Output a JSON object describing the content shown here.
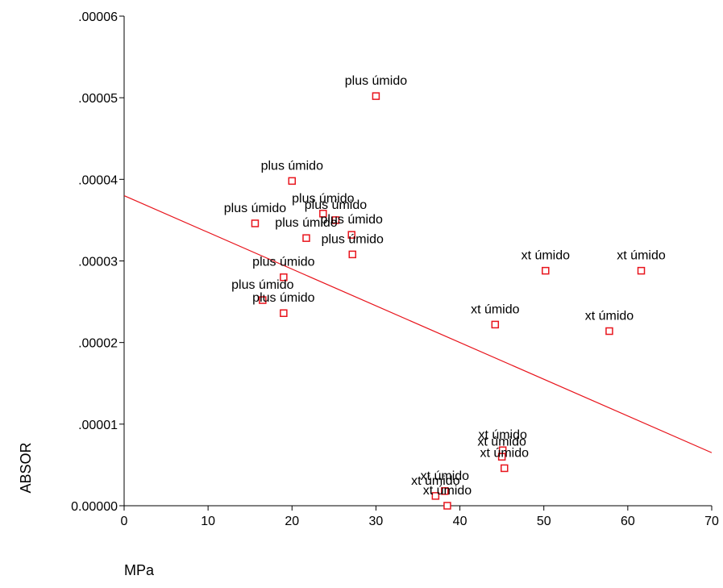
{
  "chart_data": {
    "type": "scatter",
    "xlabel": "MPa",
    "ylabel": "ABSOR",
    "xlim": [
      0,
      70
    ],
    "ylim": [
      0,
      6e-05
    ],
    "x_ticks": [
      0,
      10,
      20,
      30,
      40,
      50,
      60,
      70
    ],
    "x_tick_labels": [
      "0",
      "10",
      "20",
      "30",
      "40",
      "50",
      "60",
      "70"
    ],
    "y_ticks": [
      0,
      1e-05,
      2e-05,
      3e-05,
      4e-05,
      5e-05,
      6e-05
    ],
    "y_tick_labels": [
      "0.00000",
      ".00001",
      ".00002",
      ".00003",
      ".00004",
      ".00005",
      ".00006"
    ],
    "grid": false,
    "marker_color": "#e8141c",
    "line_color": "#e8141c",
    "fit_line": {
      "x": [
        0,
        70
      ],
      "y": [
        3.8e-05,
        6.5e-06
      ]
    },
    "points": [
      {
        "x": 30.0,
        "y": 5.02e-05,
        "label": "plus úmido"
      },
      {
        "x": 20.0,
        "y": 3.98e-05,
        "label": "plus úmido"
      },
      {
        "x": 15.6,
        "y": 3.46e-05,
        "label": "plus úmido"
      },
      {
        "x": 23.7,
        "y": 3.58e-05,
        "label": "plus úmido"
      },
      {
        "x": 21.7,
        "y": 3.28e-05,
        "label": "plus úmido"
      },
      {
        "x": 27.1,
        "y": 3.32e-05,
        "label": "plus úmido"
      },
      {
        "x": 25.2,
        "y": 3.5e-05,
        "label": "plus úmido"
      },
      {
        "x": 27.2,
        "y": 3.08e-05,
        "label": "plus úmido"
      },
      {
        "x": 19.0,
        "y": 2.8e-05,
        "label": "plus úmido"
      },
      {
        "x": 16.5,
        "y": 2.52e-05,
        "label": "plus úmido"
      },
      {
        "x": 19.0,
        "y": 2.36e-05,
        "label": "plus úmido"
      },
      {
        "x": 50.2,
        "y": 2.88e-05,
        "label": "xt úmido"
      },
      {
        "x": 61.6,
        "y": 2.88e-05,
        "label": "xt úmido"
      },
      {
        "x": 44.2,
        "y": 2.22e-05,
        "label": "xt úmido"
      },
      {
        "x": 57.8,
        "y": 2.14e-05,
        "label": "xt úmido"
      },
      {
        "x": 45.1,
        "y": 6.8e-06,
        "label": "xt úmido"
      },
      {
        "x": 45.0,
        "y": 6e-06,
        "label": "xt úmido"
      },
      {
        "x": 45.3,
        "y": 4.6e-06,
        "label": "xt úmido"
      },
      {
        "x": 37.1,
        "y": 1.2e-06,
        "label": "xt úmido"
      },
      {
        "x": 38.2,
        "y": 1.8e-06,
        "label": "xt úmido"
      },
      {
        "x": 38.5,
        "y": 0.0,
        "label": "xt úmido"
      }
    ]
  }
}
